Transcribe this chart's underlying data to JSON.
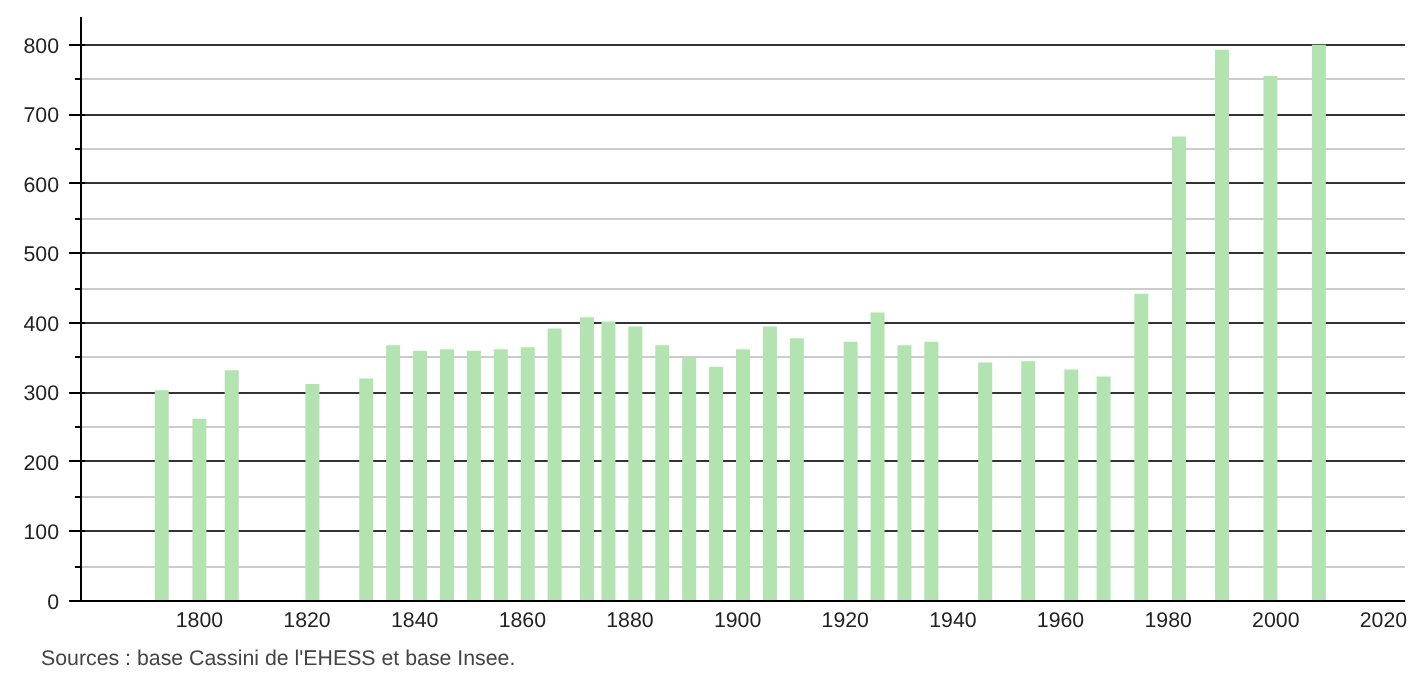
{
  "chart_data": {
    "type": "bar",
    "color": "#b3e3b0",
    "x": [
      1793,
      1800,
      1806,
      1821,
      1831,
      1836,
      1841,
      1846,
      1851,
      1856,
      1861,
      1866,
      1872,
      1876,
      1881,
      1886,
      1891,
      1896,
      1901,
      1906,
      1911,
      1921,
      1926,
      1931,
      1936,
      1946,
      1954,
      1962,
      1968,
      1975,
      1982,
      1990,
      1999,
      2008
    ],
    "values": [
      303,
      262,
      332,
      312,
      320,
      368,
      360,
      362,
      360,
      362,
      365,
      392,
      408,
      402,
      395,
      368,
      350,
      337,
      362,
      395,
      378,
      373,
      415,
      368,
      373,
      343,
      345,
      333,
      323,
      442,
      668,
      793,
      755,
      800
    ],
    "xlim": [
      1778,
      2024
    ],
    "xticks": [
      1800,
      1820,
      1840,
      1860,
      1880,
      1900,
      1920,
      1940,
      1960,
      1980,
      2000,
      2020
    ],
    "ylim": [
      0,
      840
    ],
    "yticks": [
      0,
      {
        "value": 50,
        "label": null
      },
      100,
      {
        "value": 150,
        "label": null
      },
      200,
      {
        "value": 250,
        "label": null
      },
      300,
      {
        "value": 350,
        "label": null
      },
      400,
      {
        "value": 450,
        "label": null
      },
      500,
      {
        "value": 550,
        "label": null
      },
      600,
      {
        "value": 650,
        "label": null
      },
      700,
      {
        "value": 750,
        "label": null
      },
      800
    ],
    "grid": "y",
    "annotations": [
      "Sources : base Cassini de l'EHESS et base Insee."
    ]
  }
}
